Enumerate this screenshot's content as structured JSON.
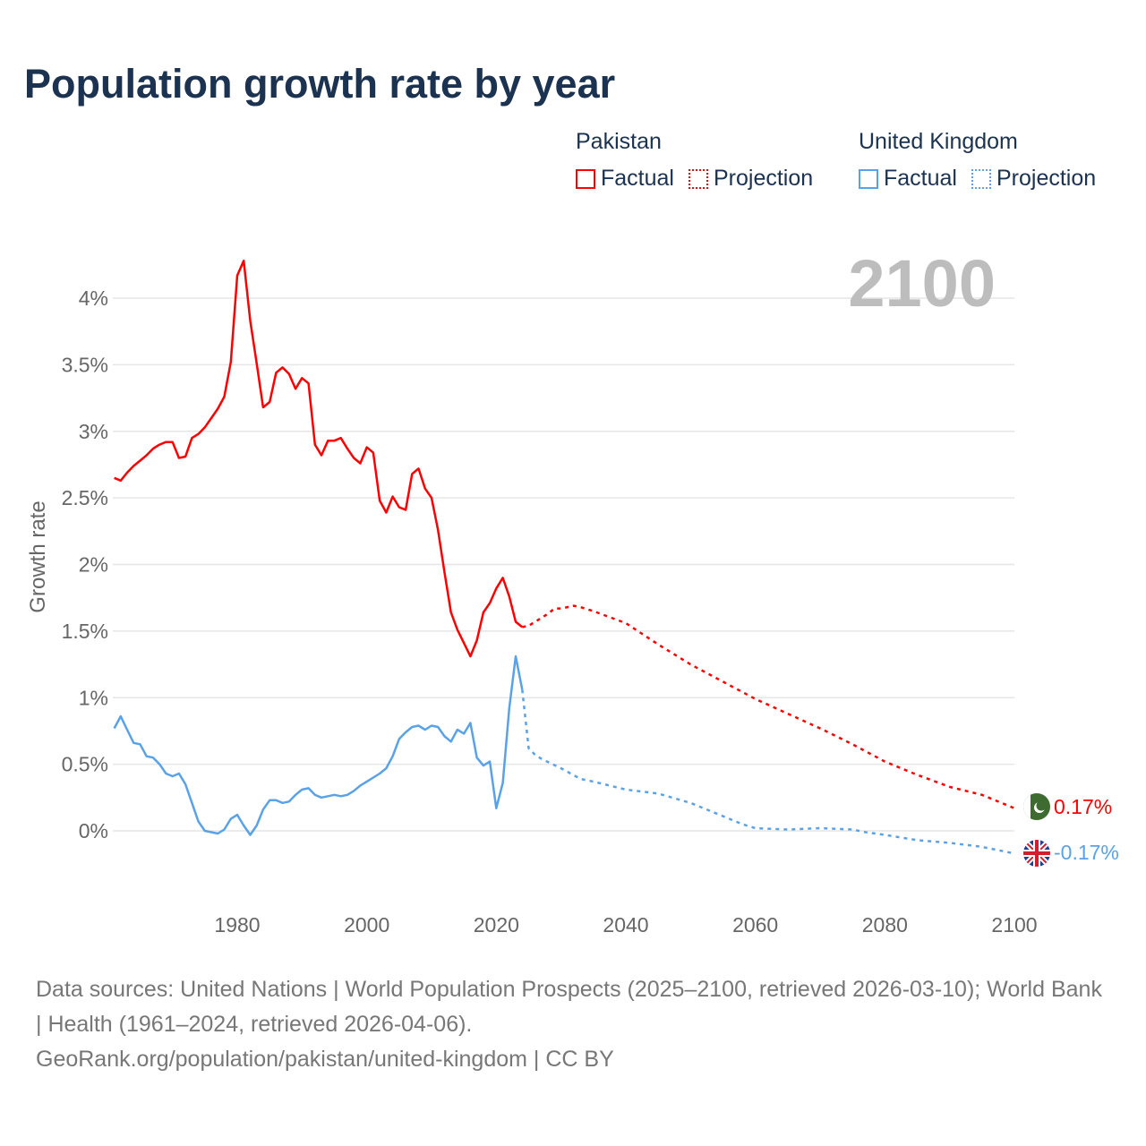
{
  "title": "Population growth rate by year",
  "legend": {
    "groups": [
      {
        "name": "Pakistan",
        "color": "#ff0000",
        "factual_label": "Factual",
        "projection_label": "Projection"
      },
      {
        "name": "United Kingdom",
        "color": "#5aa2e8",
        "factual_label": "Factual",
        "projection_label": "Projection"
      }
    ]
  },
  "year_label": "2100",
  "end_labels": {
    "pakistan": "0.17%",
    "uk": "-0.17%"
  },
  "footer": {
    "sources": "Data sources: United Nations | World Population Prospects (2025–2100, retrieved 2026-03-10); World Bank | Health (1961–2024, retrieved 2026-04-06).",
    "url": "GeoRank.org/population/pakistan/united-kingdom | CC BY"
  },
  "chart_data": {
    "type": "line",
    "title": "Population growth rate by year",
    "ylabel": "Growth rate",
    "xlabel": "",
    "xlim": [
      1961,
      2100
    ],
    "ylim": [
      -0.5,
      4.3
    ],
    "yticks": [
      0,
      0.5,
      1,
      1.5,
      2,
      2.5,
      3,
      3.5,
      4
    ],
    "ytick_labels": [
      "0%",
      "0.5%",
      "1%",
      "1.5%",
      "2%",
      "2.5%",
      "3%",
      "3.5%",
      "4%"
    ],
    "xticks": [
      1980,
      2000,
      2020,
      2040,
      2060,
      2080,
      2100
    ],
    "xtick_labels": [
      "1980",
      "2000",
      "2020",
      "2040",
      "2060",
      "2080",
      "2100"
    ],
    "grid": true,
    "legend_position": "top-right",
    "series": [
      {
        "name": "Pakistan",
        "kind": "Factual",
        "color": "#ff0000",
        "x": [
          1961,
          1962,
          1963,
          1964,
          1965,
          1966,
          1967,
          1968,
          1969,
          1970,
          1971,
          1972,
          1973,
          1974,
          1975,
          1976,
          1977,
          1978,
          1979,
          1980,
          1981,
          1982,
          1983,
          1984,
          1985,
          1986,
          1987,
          1988,
          1989,
          1990,
          1991,
          1992,
          1993,
          1994,
          1995,
          1996,
          1997,
          1998,
          1999,
          2000,
          2001,
          2002,
          2003,
          2004,
          2005,
          2006,
          2007,
          2008,
          2009,
          2010,
          2011,
          2012,
          2013,
          2014,
          2015,
          2016,
          2017,
          2018,
          2019,
          2020,
          2021,
          2022,
          2023,
          2024
        ],
        "y": [
          2.65,
          2.63,
          2.69,
          2.74,
          2.78,
          2.82,
          2.87,
          2.9,
          2.92,
          2.92,
          2.8,
          2.81,
          2.95,
          2.98,
          3.03,
          3.1,
          3.17,
          3.26,
          3.52,
          4.17,
          4.28,
          3.83,
          3.51,
          3.18,
          3.22,
          3.44,
          3.48,
          3.43,
          3.32,
          3.4,
          3.36,
          2.9,
          2.82,
          2.93,
          2.93,
          2.95,
          2.87,
          2.8,
          2.76,
          2.88,
          2.84,
          2.48,
          2.39,
          2.51,
          2.43,
          2.41,
          2.68,
          2.72,
          2.57,
          2.5,
          2.26,
          1.94,
          1.64,
          1.51,
          1.41,
          1.31,
          1.43,
          1.64,
          1.71,
          1.82,
          1.9,
          1.76,
          1.57,
          1.53
        ]
      },
      {
        "name": "Pakistan",
        "kind": "Projection",
        "color": "#ff0000",
        "x": [
          2024,
          2025,
          2026,
          2027,
          2028,
          2029,
          2030,
          2031,
          2032,
          2033,
          2035,
          2040,
          2045,
          2050,
          2055,
          2060,
          2065,
          2070,
          2075,
          2080,
          2085,
          2090,
          2095,
          2100
        ],
        "y": [
          1.53,
          1.54,
          1.57,
          1.6,
          1.63,
          1.67,
          1.67,
          1.68,
          1.69,
          1.68,
          1.65,
          1.56,
          1.4,
          1.25,
          1.12,
          0.99,
          0.88,
          0.77,
          0.65,
          0.52,
          0.42,
          0.33,
          0.27,
          0.17
        ]
      },
      {
        "name": "United Kingdom",
        "kind": "Factual",
        "color": "#5aa2e8",
        "x": [
          1961,
          1962,
          1963,
          1964,
          1965,
          1966,
          1967,
          1968,
          1969,
          1970,
          1971,
          1972,
          1973,
          1974,
          1975,
          1976,
          1977,
          1978,
          1979,
          1980,
          1981,
          1982,
          1983,
          1984,
          1985,
          1986,
          1987,
          1988,
          1989,
          1990,
          1991,
          1992,
          1993,
          1994,
          1995,
          1996,
          1997,
          1998,
          1999,
          2000,
          2001,
          2002,
          2003,
          2004,
          2005,
          2006,
          2007,
          2008,
          2009,
          2010,
          2011,
          2012,
          2013,
          2014,
          2015,
          2016,
          2017,
          2018,
          2019,
          2020,
          2021,
          2022,
          2023,
          2024
        ],
        "y": [
          0.77,
          0.86,
          0.76,
          0.66,
          0.65,
          0.56,
          0.55,
          0.5,
          0.43,
          0.41,
          0.43,
          0.35,
          0.21,
          0.07,
          0.0,
          -0.01,
          -0.02,
          0.01,
          0.09,
          0.12,
          0.04,
          -0.03,
          0.04,
          0.16,
          0.23,
          0.23,
          0.21,
          0.22,
          0.27,
          0.31,
          0.32,
          0.27,
          0.25,
          0.26,
          0.27,
          0.26,
          0.27,
          0.3,
          0.34,
          0.37,
          0.4,
          0.43,
          0.47,
          0.56,
          0.69,
          0.74,
          0.78,
          0.79,
          0.76,
          0.79,
          0.78,
          0.71,
          0.67,
          0.76,
          0.73,
          0.81,
          0.55,
          0.49,
          0.52,
          0.17,
          0.36,
          0.92,
          1.31,
          1.06
        ]
      },
      {
        "name": "United Kingdom",
        "kind": "Projection",
        "color": "#5aa2e8",
        "x": [
          2024,
          2025,
          2026,
          2027,
          2030,
          2033,
          2035,
          2040,
          2045,
          2050,
          2055,
          2058,
          2060,
          2065,
          2070,
          2075,
          2077,
          2080,
          2085,
          2090,
          2095,
          2100
        ],
        "y": [
          1.06,
          0.62,
          0.57,
          0.54,
          0.47,
          0.39,
          0.37,
          0.31,
          0.28,
          0.21,
          0.11,
          0.05,
          0.02,
          0.01,
          0.02,
          0.01,
          -0.01,
          -0.03,
          -0.07,
          -0.09,
          -0.12,
          -0.17
        ]
      }
    ]
  }
}
